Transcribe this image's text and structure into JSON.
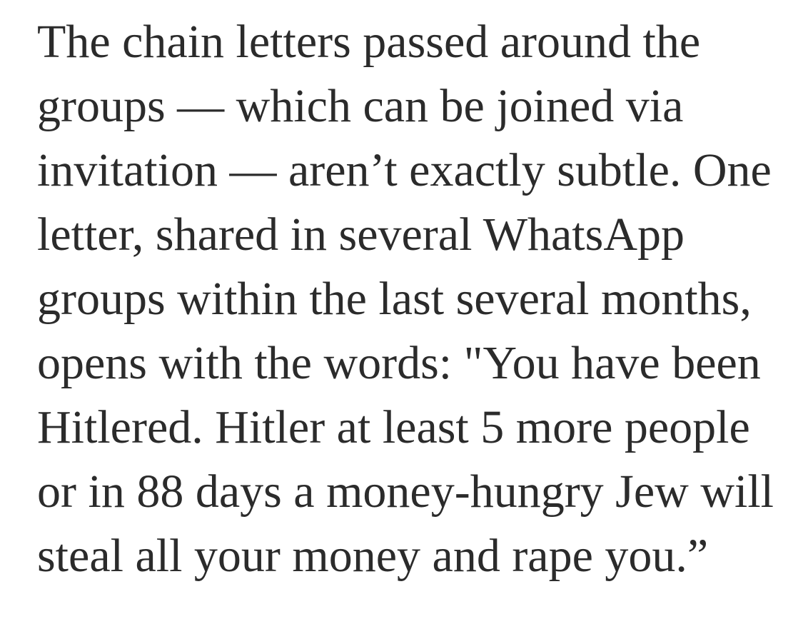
{
  "page": {
    "background_color": "#ffffff"
  },
  "article": {
    "text_color": "#2b2b2b",
    "paragraph": {
      "text": "The chain letters passed around the\ngroups — which can be joined via\ninvitation — aren’t exactly subtle. One\nletter, shared in several WhatsApp\ngroups within the last several months,\nopens with the words: \"You have been\nHitlered. Hitler at least 5 more people\nor in 88 days a money-hungry Jew will\nsteal all your money and rape you.”"
    }
  }
}
